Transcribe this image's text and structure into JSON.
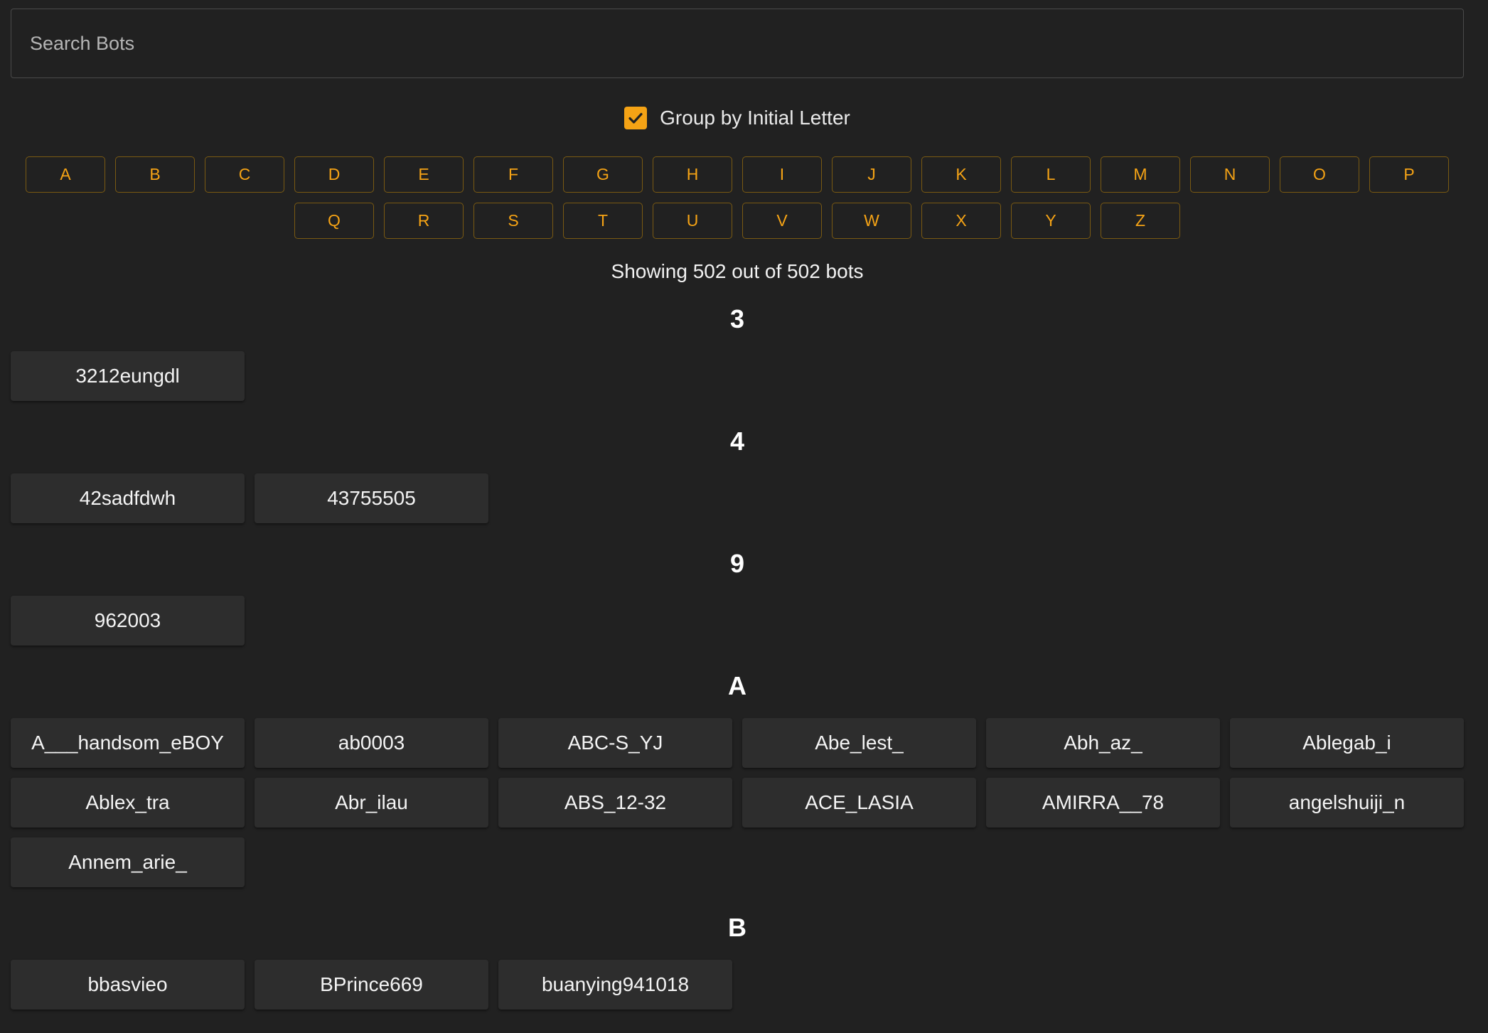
{
  "search": {
    "placeholder": "Search Bots"
  },
  "group_toggle": {
    "label": "Group by Initial Letter",
    "checked": true,
    "color": "#f5a315"
  },
  "letters": [
    "A",
    "B",
    "C",
    "D",
    "E",
    "F",
    "G",
    "H",
    "I",
    "J",
    "K",
    "L",
    "M",
    "N",
    "O",
    "P",
    "Q",
    "R",
    "S",
    "T",
    "U",
    "V",
    "W",
    "X",
    "Y",
    "Z"
  ],
  "status": {
    "text": "Showing 502 out of 502 bots"
  },
  "groups": [
    {
      "heading": "3",
      "bots": [
        "3212eungdl"
      ]
    },
    {
      "heading": "4",
      "bots": [
        "42sadfdwh",
        "43755505"
      ]
    },
    {
      "heading": "9",
      "bots": [
        "962003"
      ]
    },
    {
      "heading": "A",
      "bots": [
        "A___handsom_eBOY",
        "ab0003",
        "ABC-S_YJ",
        "Abe_lest_",
        "Abh_az_",
        "Ablegab_i",
        "Ablex_tra",
        "Abr_ilau",
        "ABS_12-32",
        "ACE_LASIA",
        "AMIRRA__78",
        "angelshuiji_n",
        "Annem_arie_"
      ]
    },
    {
      "heading": "B",
      "bots": [
        "bbasvieo",
        "BPrince669",
        "buanying941018"
      ]
    }
  ]
}
